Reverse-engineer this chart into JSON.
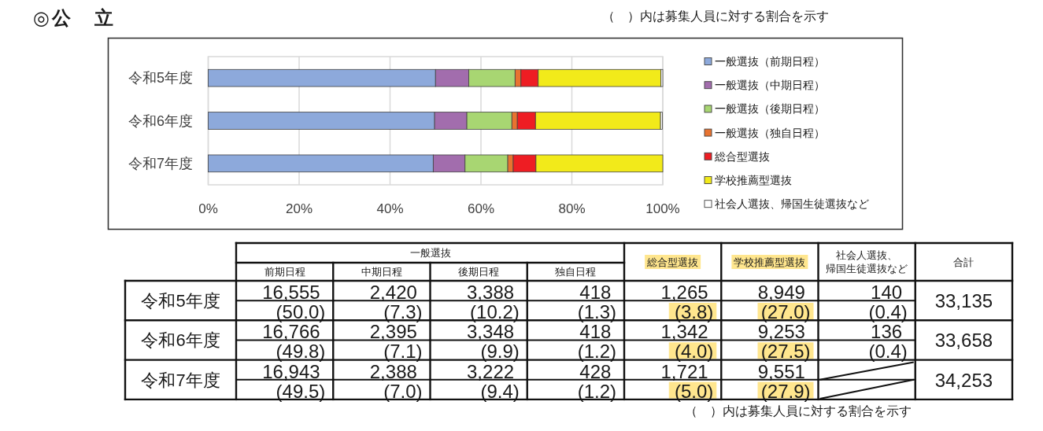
{
  "chart_data": [
    {
      "type": "bar",
      "orientation": "horizontal",
      "stacked": true,
      "title": "◎公　立",
      "categories": [
        "令和5年度",
        "令和6年度",
        "令和7年度"
      ],
      "series": [
        {
          "name": "一般選抜（前期日程）",
          "color": "#8DA9DB",
          "values": [
            50.0,
            49.8,
            49.5
          ]
        },
        {
          "name": "一般選抜（中期日程）",
          "color": "#A26DAD",
          "values": [
            7.3,
            7.1,
            7.0
          ]
        },
        {
          "name": "一般選抜（後期日程）",
          "color": "#A8D672",
          "values": [
            10.2,
            9.9,
            9.4
          ]
        },
        {
          "name": "一般選抜（独自日程）",
          "color": "#E87330",
          "values": [
            1.3,
            1.2,
            1.2
          ]
        },
        {
          "name": "総合型選抜",
          "color": "#EE1D23",
          "values": [
            3.8,
            4.0,
            5.0
          ]
        },
        {
          "name": "学校推薦型選抜",
          "color": "#F2EA1A",
          "values": [
            27.0,
            27.5,
            27.9
          ]
        },
        {
          "name": "社会人選抜、帰国生徒選抜など",
          "color": "#FFFFFF",
          "values": [
            0.4,
            0.4,
            null
          ]
        }
      ],
      "xlim": [
        0,
        100
      ],
      "xticks": [
        {
          "value": 0,
          "label": "0%"
        },
        {
          "value": 20,
          "label": "20%"
        },
        {
          "value": 40,
          "label": "40%"
        },
        {
          "value": 60,
          "label": "60%"
        },
        {
          "value": 80,
          "label": "80%"
        },
        {
          "value": 100,
          "label": "100%"
        }
      ],
      "grid": "x",
      "legend": "right",
      "annotations": [
        "（　）内は募集人員に対する割合を示す"
      ]
    },
    {
      "type": "other",
      "categories": [
        "前期日程",
        "中期日程",
        "後期日程",
        "独自日程",
        "総合型選抜",
        "学校推薦型選抜",
        "社会人選抜、帰国生徒選抜など",
        "合計"
      ],
      "y_categories": [
        "令和5年度",
        "令和6年度",
        "令和7年度"
      ],
      "cell_labels": [
        [
          "16,555 (50.0)",
          "2,420 (7.3)",
          "3,388 (10.2)",
          "418 (1.3)",
          "1,265 (3.8)",
          "8,949 (27.0)",
          "140 (0.4)",
          "33,135"
        ],
        [
          "16,766 (49.8)",
          "2,395 (7.1)",
          "3,348 (9.9)",
          "418 (1.2)",
          "1,342 (4.0)",
          "9,253 (27.5)",
          "136 (0.4)",
          "33,658"
        ],
        [
          "16,943 (49.5)",
          "2,388 (7.0)",
          "3,222 (9.4)",
          "428 (1.2)",
          "1,721 (5.0)",
          "9,551 (27.9)",
          null,
          "34,253"
        ]
      ],
      "annotations": [
        "一般選抜",
        "（　）内は募集人員に対する割合を示す"
      ]
    }
  ]
}
